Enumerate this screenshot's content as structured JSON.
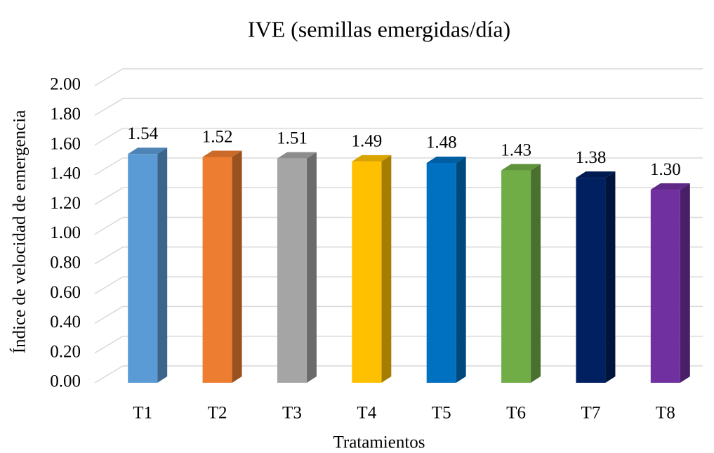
{
  "chart_data": {
    "type": "bar3d",
    "title": "IVE (semillas emergidas/día)",
    "x_label": "Tratamientos",
    "y_label": "Índice de velocidad de emergencia",
    "categories": [
      "T1",
      "T2",
      "T3",
      "T4",
      "T5",
      "T6",
      "T7",
      "T8"
    ],
    "values": [
      1.54,
      1.52,
      1.51,
      1.49,
      1.48,
      1.43,
      1.38,
      1.3
    ],
    "value_labels": [
      "1.54",
      "1.52",
      "1.51",
      "1.49",
      "1.48",
      "1.43",
      "1.38",
      "1.30"
    ],
    "colors": [
      "#5b9bd5",
      "#ed7d31",
      "#a5a5a5",
      "#ffc000",
      "#0070c0",
      "#70ad47",
      "#002060",
      "#7030a0"
    ],
    "ylim": [
      0,
      2
    ],
    "yticks": [
      {
        "value": 0,
        "label": "0.00"
      },
      {
        "value": 0.2,
        "label": "0.20"
      },
      {
        "value": 0.4,
        "label": "0.40"
      },
      {
        "value": 0.6,
        "label": "0.60"
      },
      {
        "value": 0.8,
        "label": "0.80"
      },
      {
        "value": 1,
        "label": "1.00"
      },
      {
        "value": 1.2,
        "label": "1.20"
      },
      {
        "value": 1.4,
        "label": "1.40"
      },
      {
        "value": 1.6,
        "label": "1.60"
      },
      {
        "value": 1.8,
        "label": "1.80"
      },
      {
        "value": 2,
        "label": "2.00"
      }
    ],
    "grid": true
  }
}
